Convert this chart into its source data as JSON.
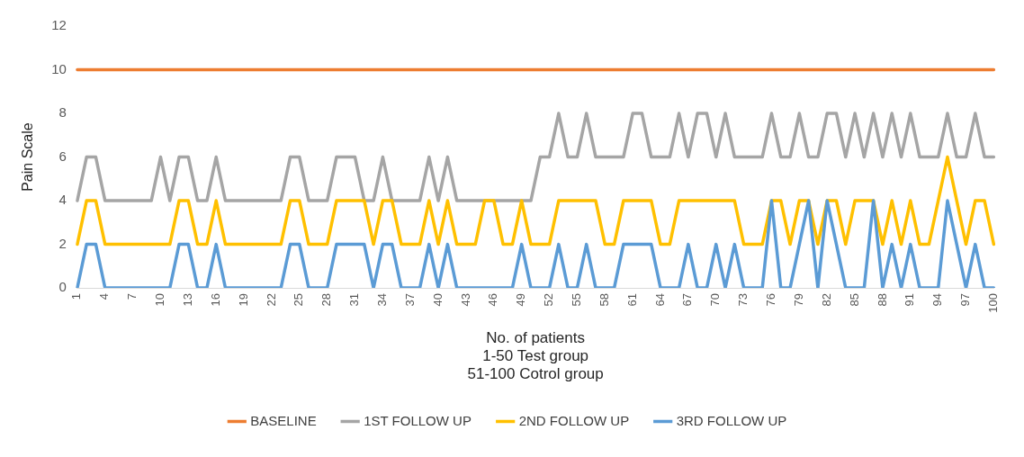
{
  "chart_data": {
    "type": "line",
    "xlabel": "No. of patients\n1-50 Test group\n51-100 Cotrol group",
    "ylabel": "Pain Scale",
    "categories": [
      "1",
      null,
      null,
      "4",
      null,
      null,
      "7",
      null,
      null,
      "10",
      null,
      null,
      "13",
      null,
      null,
      "16",
      null,
      null,
      "19",
      null,
      null,
      "22",
      null,
      null,
      "25",
      null,
      null,
      "28",
      null,
      null,
      "31",
      null,
      null,
      "34",
      null,
      null,
      "37",
      null,
      null,
      "40",
      null,
      null,
      "43",
      null,
      null,
      "46",
      null,
      null,
      "49",
      null,
      null,
      "52",
      null,
      null,
      "55",
      null,
      null,
      "58",
      null,
      null,
      "61",
      null,
      null,
      "64",
      null,
      null,
      "67",
      null,
      null,
      "70",
      null,
      null,
      "73",
      null,
      null,
      "76",
      null,
      null,
      "79",
      null,
      null,
      "82",
      null,
      null,
      "85",
      null,
      null,
      "88",
      null,
      null,
      "91",
      null,
      null,
      "94",
      null,
      null,
      "97",
      null,
      null,
      "100"
    ],
    "series": [
      {
        "name": "BASELINE",
        "color": "#ed7d31",
        "values": [
          10,
          10,
          10,
          10,
          10,
          10,
          10,
          10,
          10,
          10,
          10,
          10,
          10,
          10,
          10,
          10,
          10,
          10,
          10,
          10,
          10,
          10,
          10,
          10,
          10,
          10,
          10,
          10,
          10,
          10,
          10,
          10,
          10,
          10,
          10,
          10,
          10,
          10,
          10,
          10,
          10,
          10,
          10,
          10,
          10,
          10,
          10,
          10,
          10,
          10,
          10,
          10,
          10,
          10,
          10,
          10,
          10,
          10,
          10,
          10,
          10,
          10,
          10,
          10,
          10,
          10,
          10,
          10,
          10,
          10,
          10,
          10,
          10,
          10,
          10,
          10,
          10,
          10,
          10,
          10,
          10,
          10,
          10,
          10,
          10,
          10,
          10,
          10,
          10,
          10,
          10,
          10,
          10,
          10,
          10,
          10,
          10,
          10,
          10,
          10
        ]
      },
      {
        "name": "1ST FOLLOW UP",
        "color": "#a5a5a5",
        "values": [
          4,
          6,
          6,
          4,
          4,
          4,
          4,
          4,
          4,
          6,
          4,
          6,
          6,
          4,
          4,
          6,
          4,
          4,
          4,
          4,
          4,
          4,
          4,
          6,
          6,
          4,
          4,
          4,
          6,
          6,
          6,
          4,
          4,
          6,
          4,
          4,
          4,
          4,
          6,
          4,
          6,
          4,
          4,
          4,
          4,
          4,
          4,
          4,
          4,
          4,
          6,
          6,
          8,
          6,
          6,
          8,
          6,
          6,
          6,
          6,
          8,
          8,
          6,
          6,
          6,
          8,
          6,
          8,
          8,
          6,
          8,
          6,
          6,
          6,
          6,
          8,
          6,
          6,
          8,
          6,
          6,
          8,
          8,
          6,
          8,
          6,
          8,
          6,
          8,
          6,
          8,
          6,
          6,
          6,
          8,
          6,
          6,
          8,
          6,
          6
        ]
      },
      {
        "name": "2ND FOLLOW UP",
        "color": "#ffc000",
        "values": [
          2,
          4,
          4,
          2,
          2,
          2,
          2,
          2,
          2,
          2,
          2,
          4,
          4,
          2,
          2,
          4,
          2,
          2,
          2,
          2,
          2,
          2,
          2,
          4,
          4,
          2,
          2,
          2,
          4,
          4,
          4,
          4,
          2,
          4,
          4,
          2,
          2,
          2,
          4,
          2,
          4,
          2,
          2,
          2,
          4,
          4,
          2,
          2,
          4,
          2,
          2,
          2,
          4,
          4,
          4,
          4,
          4,
          2,
          2,
          4,
          4,
          4,
          4,
          2,
          2,
          4,
          4,
          4,
          4,
          4,
          4,
          4,
          2,
          2,
          2,
          4,
          4,
          2,
          4,
          4,
          2,
          4,
          4,
          2,
          4,
          4,
          4,
          2,
          4,
          2,
          4,
          2,
          2,
          4,
          6,
          4,
          2,
          4,
          4,
          2
        ]
      },
      {
        "name": "3RD FOLLOW UP",
        "color": "#5b9bd5",
        "values": [
          0,
          2,
          2,
          0,
          0,
          0,
          0,
          0,
          0,
          0,
          0,
          2,
          2,
          0,
          0,
          2,
          0,
          0,
          0,
          0,
          0,
          0,
          0,
          2,
          2,
          0,
          0,
          0,
          2,
          2,
          2,
          2,
          0,
          2,
          2,
          0,
          0,
          0,
          2,
          0,
          2,
          0,
          0,
          0,
          0,
          0,
          0,
          0,
          2,
          0,
          0,
          0,
          2,
          0,
          0,
          2,
          0,
          0,
          0,
          2,
          2,
          2,
          2,
          0,
          0,
          0,
          2,
          0,
          0,
          2,
          0,
          2,
          0,
          0,
          0,
          4,
          0,
          0,
          2,
          4,
          0,
          4,
          2,
          0,
          0,
          0,
          4,
          0,
          2,
          0,
          2,
          0,
          0,
          0,
          4,
          2,
          0,
          2,
          0,
          0
        ]
      }
    ],
    "ylim": [
      0,
      12
    ],
    "yticks": [
      0,
      2,
      4,
      6,
      8,
      10,
      12
    ],
    "grid": false,
    "legend": "bottom",
    "marker": "none",
    "line_style": "solid"
  }
}
